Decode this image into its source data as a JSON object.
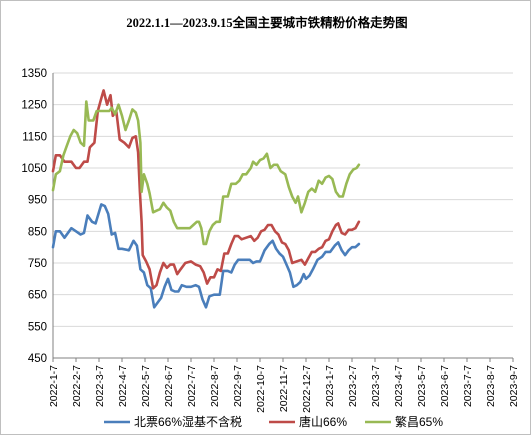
{
  "chart_data": {
    "type": "line",
    "title": "2022.1.1—2023.9.15全国主要城市铁精粉价格走势图",
    "xlabel": "",
    "ylabel": "",
    "ylim": [
      450,
      1350
    ],
    "yticks": [
      450,
      550,
      650,
      750,
      850,
      950,
      1050,
      1150,
      1250,
      1350
    ],
    "grid": "horizontal",
    "legend_position": "bottom",
    "x_tick_labels": [
      "2022-1-7",
      "2022-2-7",
      "2022-3-7",
      "2022-4-7",
      "2022-5-7",
      "2022-6-7",
      "2022-7-7",
      "2022-8-7",
      "2022-9-7",
      "2022-10-7",
      "2022-11-7",
      "2022-12-7",
      "2023-1-7",
      "2023-2-7",
      "2023-3-7",
      "2023-4-7",
      "2023-5-7",
      "2023-6-7",
      "2023-7-7",
      "2023-8-7",
      "2023-9-7"
    ],
    "series": [
      {
        "name": "北票66%湿基不含税",
        "color": "#4a7ebb",
        "points": [
          [
            0,
            800
          ],
          [
            0.12,
            850
          ],
          [
            0.3,
            850
          ],
          [
            0.5,
            830
          ],
          [
            0.8,
            860
          ],
          [
            1.0,
            850
          ],
          [
            1.2,
            840
          ],
          [
            1.35,
            845
          ],
          [
            1.5,
            900
          ],
          [
            1.7,
            880
          ],
          [
            1.85,
            875
          ],
          [
            2.1,
            935
          ],
          [
            2.25,
            930
          ],
          [
            2.4,
            905
          ],
          [
            2.55,
            840
          ],
          [
            2.7,
            845
          ],
          [
            2.85,
            795
          ],
          [
            3.0,
            795
          ],
          [
            3.3,
            790
          ],
          [
            3.5,
            820
          ],
          [
            3.65,
            805
          ],
          [
            3.8,
            730
          ],
          [
            3.95,
            720
          ],
          [
            4.1,
            680
          ],
          [
            4.25,
            670
          ],
          [
            4.4,
            610
          ],
          [
            4.55,
            625
          ],
          [
            4.7,
            640
          ],
          [
            4.85,
            675
          ],
          [
            5.0,
            700
          ],
          [
            5.15,
            665
          ],
          [
            5.3,
            660
          ],
          [
            5.45,
            660
          ],
          [
            5.6,
            680
          ],
          [
            5.8,
            675
          ],
          [
            6.0,
            675
          ],
          [
            6.2,
            680
          ],
          [
            6.35,
            675
          ],
          [
            6.5,
            635
          ],
          [
            6.65,
            610
          ],
          [
            6.8,
            645
          ],
          [
            7.0,
            650
          ],
          [
            7.25,
            650
          ],
          [
            7.4,
            725
          ],
          [
            7.6,
            725
          ],
          [
            7.75,
            720
          ],
          [
            7.9,
            745
          ],
          [
            8.05,
            760
          ],
          [
            8.3,
            760
          ],
          [
            8.55,
            760
          ],
          [
            8.7,
            750
          ],
          [
            8.85,
            755
          ],
          [
            9.0,
            755
          ],
          [
            9.2,
            790
          ],
          [
            9.4,
            810
          ],
          [
            9.55,
            820
          ],
          [
            9.7,
            795
          ],
          [
            9.85,
            780
          ],
          [
            10.0,
            770
          ],
          [
            10.15,
            745
          ],
          [
            10.3,
            720
          ],
          [
            10.45,
            675
          ],
          [
            10.6,
            680
          ],
          [
            10.75,
            690
          ],
          [
            10.9,
            715
          ],
          [
            11.0,
            700
          ],
          [
            11.15,
            710
          ],
          [
            11.3,
            730
          ],
          [
            11.5,
            760
          ],
          [
            11.7,
            770
          ],
          [
            11.85,
            785
          ],
          [
            12.05,
            785
          ],
          [
            12.25,
            805
          ],
          [
            12.4,
            815
          ],
          [
            12.55,
            790
          ],
          [
            12.7,
            775
          ],
          [
            12.85,
            790
          ],
          [
            13.0,
            800
          ],
          [
            13.15,
            800
          ],
          [
            13.3,
            810
          ]
        ]
      },
      {
        "name": "唐山66%",
        "color": "#be4b48",
        "points": [
          [
            0,
            1040
          ],
          [
            0.12,
            1090
          ],
          [
            0.3,
            1090
          ],
          [
            0.5,
            1070
          ],
          [
            0.8,
            1070
          ],
          [
            1.0,
            1050
          ],
          [
            1.15,
            1050
          ],
          [
            1.35,
            1070
          ],
          [
            1.5,
            1070
          ],
          [
            1.6,
            1115
          ],
          [
            1.8,
            1130
          ],
          [
            1.95,
            1230
          ],
          [
            2.1,
            1270
          ],
          [
            2.2,
            1295
          ],
          [
            2.35,
            1250
          ],
          [
            2.5,
            1280
          ],
          [
            2.6,
            1215
          ],
          [
            2.75,
            1230
          ],
          [
            2.9,
            1140
          ],
          [
            3.1,
            1130
          ],
          [
            3.3,
            1115
          ],
          [
            3.45,
            1145
          ],
          [
            3.6,
            1150
          ],
          [
            3.7,
            1100
          ],
          [
            3.78,
            975
          ],
          [
            3.85,
            880
          ],
          [
            3.9,
            775
          ],
          [
            4.05,
            755
          ],
          [
            4.2,
            730
          ],
          [
            4.35,
            670
          ],
          [
            4.5,
            680
          ],
          [
            4.65,
            720
          ],
          [
            4.8,
            750
          ],
          [
            4.95,
            735
          ],
          [
            5.1,
            745
          ],
          [
            5.25,
            745
          ],
          [
            5.4,
            715
          ],
          [
            5.55,
            730
          ],
          [
            5.75,
            750
          ],
          [
            6.0,
            755
          ],
          [
            6.2,
            745
          ],
          [
            6.4,
            740
          ],
          [
            6.55,
            720
          ],
          [
            6.7,
            685
          ],
          [
            6.85,
            705
          ],
          [
            7.0,
            705
          ],
          [
            7.15,
            730
          ],
          [
            7.3,
            725
          ],
          [
            7.45,
            780
          ],
          [
            7.6,
            780
          ],
          [
            7.75,
            810
          ],
          [
            7.9,
            835
          ],
          [
            8.05,
            835
          ],
          [
            8.2,
            825
          ],
          [
            8.4,
            830
          ],
          [
            8.6,
            835
          ],
          [
            8.75,
            820
          ],
          [
            8.9,
            830
          ],
          [
            9.05,
            850
          ],
          [
            9.2,
            855
          ],
          [
            9.35,
            870
          ],
          [
            9.5,
            870
          ],
          [
            9.65,
            850
          ],
          [
            9.8,
            840
          ],
          [
            9.95,
            815
          ],
          [
            10.1,
            810
          ],
          [
            10.25,
            790
          ],
          [
            10.4,
            750
          ],
          [
            10.6,
            755
          ],
          [
            10.8,
            760
          ],
          [
            10.95,
            745
          ],
          [
            11.1,
            765
          ],
          [
            11.25,
            785
          ],
          [
            11.4,
            785
          ],
          [
            11.55,
            795
          ],
          [
            11.7,
            800
          ],
          [
            11.85,
            820
          ],
          [
            12.0,
            825
          ],
          [
            12.15,
            850
          ],
          [
            12.3,
            870
          ],
          [
            12.4,
            875
          ],
          [
            12.55,
            845
          ],
          [
            12.7,
            840
          ],
          [
            12.85,
            855
          ],
          [
            13.0,
            855
          ],
          [
            13.15,
            860
          ],
          [
            13.3,
            880
          ]
        ]
      },
      {
        "name": "繁昌65%",
        "color": "#98b954",
        "points": [
          [
            0,
            980
          ],
          [
            0.12,
            1030
          ],
          [
            0.3,
            1040
          ],
          [
            0.45,
            1090
          ],
          [
            0.6,
            1120
          ],
          [
            0.75,
            1150
          ],
          [
            0.9,
            1170
          ],
          [
            1.05,
            1160
          ],
          [
            1.2,
            1130
          ],
          [
            1.35,
            1120
          ],
          [
            1.45,
            1260
          ],
          [
            1.55,
            1200
          ],
          [
            1.75,
            1200
          ],
          [
            1.9,
            1230
          ],
          [
            2.05,
            1230
          ],
          [
            2.3,
            1230
          ],
          [
            2.45,
            1230
          ],
          [
            2.55,
            1240
          ],
          [
            2.7,
            1220
          ],
          [
            2.85,
            1250
          ],
          [
            3.0,
            1215
          ],
          [
            3.15,
            1170
          ],
          [
            3.3,
            1200
          ],
          [
            3.45,
            1235
          ],
          [
            3.6,
            1225
          ],
          [
            3.7,
            1200
          ],
          [
            3.8,
            1130
          ],
          [
            3.85,
            975
          ],
          [
            3.95,
            1030
          ],
          [
            4.1,
            1000
          ],
          [
            4.2,
            970
          ],
          [
            4.35,
            910
          ],
          [
            4.5,
            915
          ],
          [
            4.65,
            920
          ],
          [
            4.8,
            940
          ],
          [
            4.95,
            925
          ],
          [
            5.1,
            915
          ],
          [
            5.25,
            880
          ],
          [
            5.4,
            860
          ],
          [
            5.6,
            860
          ],
          [
            5.8,
            860
          ],
          [
            5.95,
            860
          ],
          [
            6.1,
            870
          ],
          [
            6.25,
            880
          ],
          [
            6.35,
            880
          ],
          [
            6.45,
            860
          ],
          [
            6.55,
            810
          ],
          [
            6.65,
            810
          ],
          [
            6.8,
            850
          ],
          [
            6.95,
            870
          ],
          [
            7.1,
            880
          ],
          [
            7.25,
            880
          ],
          [
            7.4,
            960
          ],
          [
            7.6,
            960
          ],
          [
            7.75,
            1000
          ],
          [
            7.95,
            1000
          ],
          [
            8.1,
            1010
          ],
          [
            8.25,
            1030
          ],
          [
            8.4,
            1030
          ],
          [
            8.6,
            1050
          ],
          [
            8.7,
            1070
          ],
          [
            8.85,
            1060
          ],
          [
            9.0,
            1075
          ],
          [
            9.15,
            1080
          ],
          [
            9.3,
            1095
          ],
          [
            9.45,
            1050
          ],
          [
            9.6,
            1060
          ],
          [
            9.75,
            1060
          ],
          [
            9.9,
            1040
          ],
          [
            10.1,
            1030
          ],
          [
            10.25,
            990
          ],
          [
            10.4,
            960
          ],
          [
            10.55,
            940
          ],
          [
            10.65,
            960
          ],
          [
            10.8,
            910
          ],
          [
            10.95,
            940
          ],
          [
            11.1,
            975
          ],
          [
            11.25,
            985
          ],
          [
            11.4,
            975
          ],
          [
            11.55,
            1010
          ],
          [
            11.7,
            1000
          ],
          [
            11.85,
            1020
          ],
          [
            12.0,
            1025
          ],
          [
            12.15,
            1015
          ],
          [
            12.3,
            975
          ],
          [
            12.45,
            960
          ],
          [
            12.6,
            960
          ],
          [
            12.75,
            1000
          ],
          [
            12.9,
            1030
          ],
          [
            13.05,
            1045
          ],
          [
            13.2,
            1050
          ],
          [
            13.3,
            1060
          ]
        ]
      }
    ]
  }
}
